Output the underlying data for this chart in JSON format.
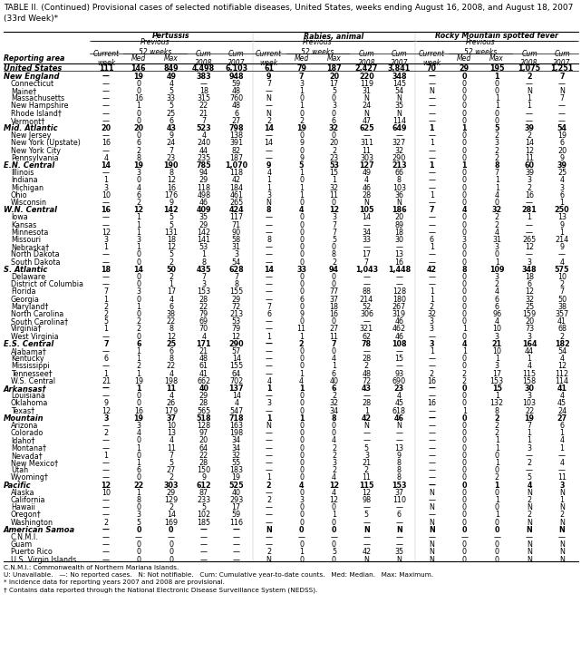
{
  "title": "TABLE II. (Continued) Provisional cases of selected notifiable diseases, United States, weeks ending August 16, 2008, and August 18, 2007\n(33rd Week)*",
  "col_groups": [
    "Pertussis",
    "Rabies, animal",
    "Rocky Mountain spotted fever"
  ],
  "footer_lines": [
    "C.N.M.I.: Commonwealth of Northern Mariana Islands.",
    "U: Unavailable.   —: No reported cases.   N: Not notifiable.   Cum: Cumulative year-to-date counts.   Med: Median.   Max: Maximum.",
    "* Incidence data for reporting years 2007 and 2008 are provisional.",
    "† Contains data reported through the National Electronic Disease Surveillance System (NEDSS)."
  ],
  "rows": [
    [
      "United States",
      "111",
      "146",
      "849",
      "4,498",
      "6,103",
      "61",
      "79",
      "187",
      "2,427",
      "3,841",
      "70",
      "29",
      "195",
      "1,075",
      "1,251"
    ],
    [
      "New England",
      "—",
      "19",
      "49",
      "383",
      "948",
      "9",
      "7",
      "20",
      "220",
      "348",
      "—",
      "0",
      "1",
      "2",
      "7"
    ],
    [
      "Connecticut",
      "—",
      "0",
      "4",
      "—",
      "59",
      "7",
      "3",
      "17",
      "119",
      "145",
      "—",
      "0",
      "0",
      "—",
      "—"
    ],
    [
      "Maine†",
      "—",
      "0",
      "5",
      "18",
      "48",
      "—",
      "1",
      "5",
      "31",
      "54",
      "N",
      "0",
      "0",
      "N",
      "N"
    ],
    [
      "Massachusetts",
      "—",
      "16",
      "33",
      "315",
      "760",
      "N",
      "0",
      "0",
      "N",
      "N",
      "—",
      "0",
      "1",
      "1",
      "7"
    ],
    [
      "New Hampshire",
      "—",
      "1",
      "5",
      "22",
      "48",
      "—",
      "1",
      "3",
      "24",
      "35",
      "—",
      "0",
      "1",
      "1",
      "—"
    ],
    [
      "Rhode Island†",
      "—",
      "0",
      "25",
      "21",
      "6",
      "N",
      "0",
      "0",
      "N",
      "N",
      "—",
      "0",
      "0",
      "—",
      "—"
    ],
    [
      "Vermont†",
      "—",
      "0",
      "6",
      "7",
      "27",
      "2",
      "2",
      "6",
      "47",
      "114",
      "—",
      "0",
      "0",
      "—",
      "—"
    ],
    [
      "Mid. Atlantic",
      "20",
      "20",
      "43",
      "523",
      "798",
      "14",
      "19",
      "32",
      "625",
      "649",
      "1",
      "1",
      "5",
      "39",
      "54"
    ],
    [
      "New Jersey",
      "—",
      "0",
      "9",
      "4",
      "138",
      "—",
      "0",
      "0",
      "—",
      "—",
      "—",
      "0",
      "2",
      "2",
      "19"
    ],
    [
      "New York (Upstate)",
      "16",
      "6",
      "24",
      "240",
      "391",
      "14",
      "9",
      "20",
      "311",
      "327",
      "1",
      "0",
      "3",
      "14",
      "6"
    ],
    [
      "New York City",
      "—",
      "2",
      "7",
      "44",
      "82",
      "—",
      "0",
      "2",
      "11",
      "32",
      "—",
      "0",
      "2",
      "12",
      "20"
    ],
    [
      "Pennsylvania",
      "4",
      "8",
      "23",
      "235",
      "187",
      "—",
      "9",
      "23",
      "303",
      "290",
      "—",
      "0",
      "2",
      "11",
      "9"
    ],
    [
      "E.N. Central",
      "14",
      "19",
      "190",
      "785",
      "1,070",
      "9",
      "5",
      "53",
      "127",
      "213",
      "1",
      "1",
      "8",
      "60",
      "39"
    ],
    [
      "Illinois",
      "—",
      "3",
      "8",
      "94",
      "118",
      "4",
      "1",
      "15",
      "49",
      "66",
      "—",
      "0",
      "7",
      "39",
      "25"
    ],
    [
      "Indiana",
      "1",
      "0",
      "12",
      "29",
      "42",
      "1",
      "0",
      "1",
      "4",
      "8",
      "—",
      "0",
      "1",
      "3",
      "4"
    ],
    [
      "Michigan",
      "3",
      "4",
      "16",
      "118",
      "184",
      "1",
      "1",
      "32",
      "46",
      "103",
      "—",
      "0",
      "1",
      "2",
      "3"
    ],
    [
      "Ohio",
      "10",
      "6",
      "176",
      "498",
      "461",
      "3",
      "1",
      "11",
      "28",
      "36",
      "1",
      "0",
      "4",
      "16",
      "6"
    ],
    [
      "Wisconsin",
      "—",
      "2",
      "9",
      "46",
      "265",
      "N",
      "0",
      "0",
      "N",
      "N",
      "—",
      "0",
      "0",
      "—",
      "1"
    ],
    [
      "W.N. Central",
      "16",
      "12",
      "142",
      "409",
      "424",
      "8",
      "4",
      "12",
      "105",
      "186",
      "7",
      "4",
      "32",
      "281",
      "250"
    ],
    [
      "Iowa",
      "—",
      "1",
      "5",
      "35",
      "117",
      "—",
      "0",
      "3",
      "14",
      "20",
      "—",
      "0",
      "2",
      "1",
      "13"
    ],
    [
      "Kansas",
      "—",
      "1",
      "5",
      "29",
      "71",
      "—",
      "0",
      "7",
      "—",
      "89",
      "—",
      "0",
      "2",
      "—",
      "9"
    ],
    [
      "Minnesota",
      "12",
      "1",
      "131",
      "142",
      "90",
      "—",
      "0",
      "7",
      "34",
      "18",
      "—",
      "0",
      "4",
      "—",
      "1"
    ],
    [
      "Missouri",
      "3",
      "3",
      "18",
      "141",
      "58",
      "8",
      "0",
      "5",
      "33",
      "30",
      "6",
      "3",
      "31",
      "265",
      "214"
    ],
    [
      "Nebraska†",
      "1",
      "1",
      "12",
      "53",
      "31",
      "—",
      "0",
      "0",
      "—",
      "—",
      "1",
      "0",
      "3",
      "12",
      "9"
    ],
    [
      "North Dakota",
      "—",
      "0",
      "5",
      "1",
      "3",
      "—",
      "0",
      "8",
      "17",
      "13",
      "—",
      "0",
      "0",
      "—",
      "—"
    ],
    [
      "South Dakota",
      "—",
      "0",
      "2",
      "8",
      "54",
      "—",
      "0",
      "2",
      "7",
      "16",
      "—",
      "0",
      "1",
      "3",
      "4"
    ],
    [
      "S. Atlantic",
      "18",
      "14",
      "50",
      "435",
      "628",
      "14",
      "33",
      "94",
      "1,043",
      "1,448",
      "42",
      "8",
      "109",
      "348",
      "575"
    ],
    [
      "Delaware",
      "—",
      "0",
      "2",
      "7",
      "7",
      "—",
      "0",
      "0",
      "—",
      "—",
      "—",
      "0",
      "3",
      "18",
      "10"
    ],
    [
      "District of Columbia",
      "—",
      "0",
      "1",
      "3",
      "8",
      "—",
      "0",
      "0",
      "—",
      "—",
      "—",
      "0",
      "2",
      "6",
      "2"
    ],
    [
      "Florida",
      "7",
      "3",
      "17",
      "153",
      "155",
      "—",
      "0",
      "77",
      "88",
      "128",
      "1",
      "0",
      "4",
      "12",
      "7"
    ],
    [
      "Georgia",
      "1",
      "0",
      "4",
      "28",
      "29",
      "—",
      "6",
      "37",
      "214",
      "180",
      "1",
      "0",
      "6",
      "32",
      "50"
    ],
    [
      "Maryland†",
      "2",
      "1",
      "6",
      "22",
      "72",
      "7",
      "0",
      "18",
      "52",
      "267",
      "2",
      "0",
      "6",
      "25",
      "38"
    ],
    [
      "North Carolina",
      "2",
      "0",
      "38",
      "79",
      "213",
      "6",
      "9",
      "16",
      "306",
      "319",
      "32",
      "0",
      "96",
      "159",
      "357"
    ],
    [
      "South Carolina†",
      "5",
      "2",
      "22",
      "69",
      "53",
      "—",
      "0",
      "0",
      "—",
      "46",
      "3",
      "0",
      "4",
      "20",
      "41"
    ],
    [
      "Virginia†",
      "1",
      "2",
      "8",
      "70",
      "79",
      "—",
      "11",
      "27",
      "321",
      "462",
      "3",
      "1",
      "10",
      "73",
      "68"
    ],
    [
      "West Virginia",
      "—",
      "0",
      "12",
      "4",
      "12",
      "1",
      "1",
      "11",
      "62",
      "46",
      "—",
      "0",
      "3",
      "3",
      "2"
    ],
    [
      "E.S. Central",
      "7",
      "6",
      "25",
      "171",
      "290",
      "—",
      "2",
      "7",
      "78",
      "108",
      "3",
      "4",
      "21",
      "164",
      "182"
    ],
    [
      "Alabama†",
      "—",
      "1",
      "6",
      "21",
      "57",
      "—",
      "0",
      "0",
      "—",
      "—",
      "1",
      "1",
      "10",
      "44",
      "54"
    ],
    [
      "Kentucky",
      "6",
      "1",
      "8",
      "48",
      "14",
      "—",
      "0",
      "4",
      "28",
      "15",
      "—",
      "0",
      "1",
      "1",
      "4"
    ],
    [
      "Mississippi",
      "—",
      "2",
      "22",
      "61",
      "155",
      "—",
      "0",
      "1",
      "2",
      "—",
      "—",
      "0",
      "3",
      "4",
      "12"
    ],
    [
      "Tennessee†",
      "1",
      "1",
      "4",
      "41",
      "64",
      "—",
      "1",
      "6",
      "48",
      "93",
      "2",
      "2",
      "17",
      "115",
      "112"
    ],
    [
      "W.S. Central",
      "21",
      "19",
      "198",
      "662",
      "702",
      "4",
      "4",
      "40",
      "72",
      "690",
      "16",
      "2",
      "153",
      "158",
      "114"
    ],
    [
      "Arkansas†",
      "—",
      "1",
      "11",
      "40",
      "137",
      "1",
      "1",
      "6",
      "43",
      "23",
      "—",
      "0",
      "15",
      "30",
      "41"
    ],
    [
      "Louisiana",
      "—",
      "0",
      "4",
      "29",
      "14",
      "—",
      "0",
      "2",
      "—",
      "4",
      "—",
      "0",
      "1",
      "3",
      "4"
    ],
    [
      "Oklahoma",
      "9",
      "0",
      "26",
      "28",
      "4",
      "3",
      "0",
      "32",
      "28",
      "45",
      "16",
      "0",
      "132",
      "103",
      "45"
    ],
    [
      "Texas†",
      "12",
      "16",
      "179",
      "565",
      "547",
      "—",
      "0",
      "34",
      "1",
      "618",
      "—",
      "1",
      "8",
      "22",
      "24"
    ],
    [
      "Mountain",
      "3",
      "19",
      "37",
      "518",
      "718",
      "1",
      "1",
      "8",
      "42",
      "46",
      "—",
      "0",
      "2",
      "19",
      "27"
    ],
    [
      "Arizona",
      "—",
      "3",
      "10",
      "128",
      "163",
      "N",
      "0",
      "0",
      "N",
      "N",
      "—",
      "0",
      "2",
      "7",
      "6"
    ],
    [
      "Colorado",
      "2",
      "4",
      "13",
      "97",
      "198",
      "—",
      "0",
      "0",
      "—",
      "—",
      "—",
      "0",
      "2",
      "1",
      "1"
    ],
    [
      "Idaho†",
      "—",
      "0",
      "4",
      "20",
      "34",
      "—",
      "0",
      "4",
      "—",
      "—",
      "—",
      "0",
      "1",
      "1",
      "4"
    ],
    [
      "Montana†",
      "—",
      "1",
      "11",
      "64",
      "34",
      "—",
      "0",
      "2",
      "5",
      "13",
      "—",
      "0",
      "1",
      "3",
      "1"
    ],
    [
      "Nevada†",
      "1",
      "0",
      "7",
      "22",
      "32",
      "—",
      "0",
      "2",
      "3",
      "9",
      "—",
      "0",
      "0",
      "—",
      "—"
    ],
    [
      "New Mexico†",
      "—",
      "1",
      "5",
      "28",
      "55",
      "—",
      "0",
      "3",
      "21",
      "8",
      "—",
      "0",
      "1",
      "2",
      "4"
    ],
    [
      "Utah",
      "—",
      "6",
      "27",
      "150",
      "183",
      "—",
      "0",
      "2",
      "2",
      "8",
      "—",
      "0",
      "0",
      "—",
      "—"
    ],
    [
      "Wyoming†",
      "—",
      "0",
      "2",
      "9",
      "19",
      "1",
      "0",
      "4",
      "11",
      "8",
      "—",
      "0",
      "2",
      "5",
      "11"
    ],
    [
      "Pacific",
      "12",
      "22",
      "303",
      "612",
      "525",
      "2",
      "4",
      "12",
      "115",
      "153",
      "—",
      "0",
      "1",
      "4",
      "3"
    ],
    [
      "Alaska",
      "10",
      "1",
      "29",
      "87",
      "40",
      "—",
      "0",
      "4",
      "12",
      "37",
      "N",
      "0",
      "0",
      "N",
      "N"
    ],
    [
      "California",
      "—",
      "8",
      "129",
      "233",
      "293",
      "2",
      "3",
      "12",
      "98",
      "110",
      "—",
      "0",
      "1",
      "2",
      "1"
    ],
    [
      "Hawaii",
      "—",
      "0",
      "2",
      "5",
      "17",
      "—",
      "0",
      "0",
      "—",
      "—",
      "N",
      "0",
      "0",
      "N",
      "N"
    ],
    [
      "Oregon†",
      "—",
      "3",
      "14",
      "102",
      "59",
      "—",
      "0",
      "1",
      "5",
      "6",
      "—",
      "0",
      "1",
      "2",
      "2"
    ],
    [
      "Washington",
      "2",
      "5",
      "169",
      "185",
      "116",
      "—",
      "0",
      "0",
      "—",
      "—",
      "N",
      "0",
      "0",
      "N",
      "N"
    ],
    [
      "American Samoa",
      "—",
      "0",
      "0",
      "—",
      "—",
      "N",
      "0",
      "0",
      "N",
      "N",
      "N",
      "0",
      "0",
      "N",
      "N"
    ],
    [
      "C.N.M.I.",
      "—",
      "—",
      "—",
      "—",
      "—",
      "—",
      "—",
      "—",
      "—",
      "—",
      "—",
      "—",
      "—",
      "—",
      "—"
    ],
    [
      "Guam",
      "—",
      "0",
      "0",
      "—",
      "—",
      "—",
      "0",
      "0",
      "—",
      "—",
      "N",
      "0",
      "0",
      "N",
      "N"
    ],
    [
      "Puerto Rico",
      "—",
      "0",
      "0",
      "—",
      "—",
      "2",
      "1",
      "5",
      "42",
      "35",
      "N",
      "0",
      "0",
      "N",
      "N"
    ],
    [
      "U.S. Virgin Islands",
      "—",
      "0",
      "0",
      "—",
      "—",
      "N",
      "0",
      "0",
      "N",
      "N",
      "N",
      "0",
      "0",
      "N",
      "N"
    ]
  ],
  "bold_rows": [
    0,
    1,
    8,
    13,
    19,
    27,
    37,
    43,
    47,
    56,
    62
  ],
  "section_rows": [
    1,
    8,
    13,
    19,
    27,
    37,
    43,
    47,
    56,
    62
  ]
}
